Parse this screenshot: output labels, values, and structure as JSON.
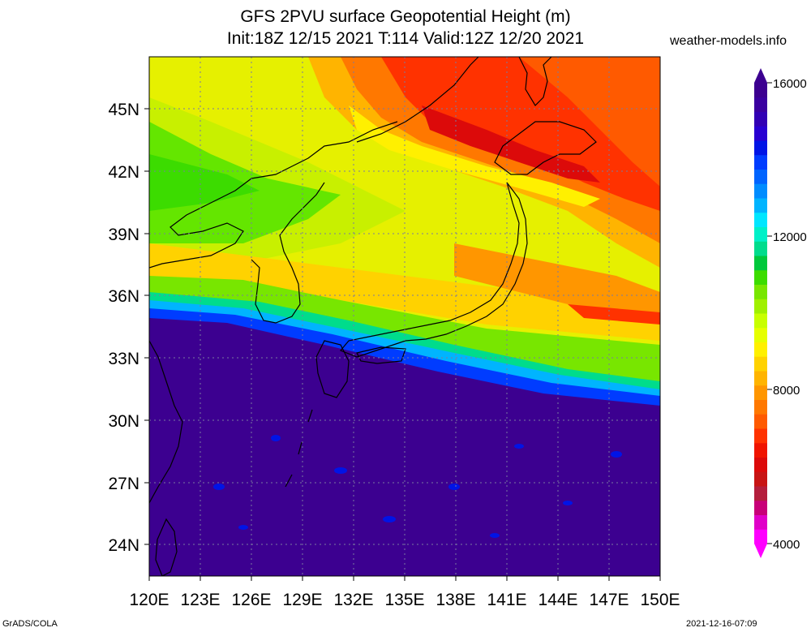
{
  "title": "GFS 2PVU surface Geopotential Height (m)",
  "subtitle": "Init:18Z 12/15 2021 T:114 Valid:12Z 12/20 2021",
  "source": "weather-models.info",
  "footer_left": "GrADS/COLA",
  "footer_right": "2021-12-16-07:09",
  "map": {
    "lon_range": [
      120,
      150
    ],
    "lat_range": [
      22.5,
      47.5
    ],
    "lon_ticks": [
      "120E",
      "123E",
      "126E",
      "129E",
      "132E",
      "135E",
      "138E",
      "141E",
      "144E",
      "147E",
      "150E"
    ],
    "lat_ticks": [
      "45N",
      "42N",
      "39N",
      "36N",
      "33N",
      "30N",
      "27N",
      "24N"
    ],
    "gridlines": "dotted",
    "field": {
      "variable": "2PVU surface geopotential height",
      "units": "m",
      "pattern": "low heights (red/orange) in the north near Hokkaido, a sharp gradient around 34-36N, high heights (dark purple) south of 34N"
    }
  },
  "colorbar": {
    "range": [
      4000,
      16000
    ],
    "tick_labels": [
      "16000",
      "12000",
      "8000",
      "4000"
    ],
    "colors": [
      "#ff00ff",
      "#e000c8",
      "#c80078",
      "#b41e3c",
      "#c81414",
      "#dc0a0a",
      "#f01400",
      "#ff3200",
      "#ff5a00",
      "#ff7800",
      "#ff9600",
      "#ffb400",
      "#ffd200",
      "#fff000",
      "#e6ff00",
      "#c8ff00",
      "#a0f000",
      "#78e600",
      "#3cdc00",
      "#00c83c",
      "#00dc8c",
      "#00f0c8",
      "#00e6ff",
      "#00b4ff",
      "#008cff",
      "#0064ff",
      "#003cff",
      "#0014e6",
      "#2800d2",
      "#3200b4",
      "#3a00a0",
      "#3c0090"
    ]
  }
}
